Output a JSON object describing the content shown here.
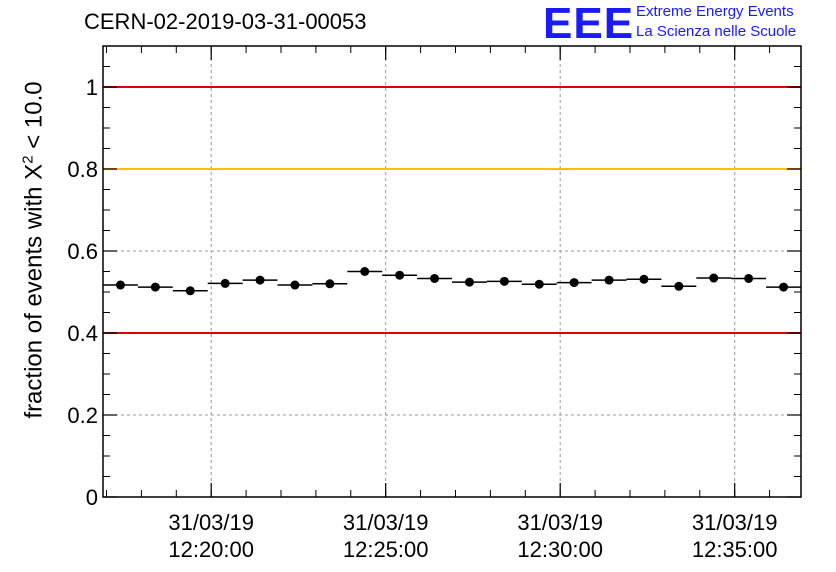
{
  "header": {
    "title": "CERN-02-2019-03-31-00053",
    "logo_text": "EEE",
    "logo_line1": "Extreme Energy Events",
    "logo_line2": "La Scienza nelle Scuole"
  },
  "colors": {
    "logo": "#1a1aff",
    "red_line": "#e00000",
    "yellow_line": "#ffc000",
    "points": "#000000"
  },
  "chart_data": {
    "type": "scatter",
    "title": "CERN-02-2019-03-31-00053",
    "xlabel": "",
    "ylabel_prefix": "fraction of events with X",
    "ylabel_sup": "2",
    "ylabel_suffix": " < 10.0",
    "ylim": [
      0,
      1.1
    ],
    "xlim_minutes": [
      0,
      20
    ],
    "yticks": [
      "0",
      "0.2",
      "0.4",
      "0.6",
      "0.8",
      "1"
    ],
    "ytick_values": [
      0,
      0.2,
      0.4,
      0.6,
      0.8,
      1.0
    ],
    "xticks": [
      {
        "minute": 3.1,
        "date": "31/03/19",
        "time": "12:20:00"
      },
      {
        "minute": 8.1,
        "date": "31/03/19",
        "time": "12:25:00"
      },
      {
        "minute": 13.1,
        "date": "31/03/19",
        "time": "12:30:00"
      },
      {
        "minute": 18.1,
        "date": "31/03/19",
        "time": "12:35:00"
      }
    ],
    "reference_lines": [
      {
        "y": 1.0,
        "color": "#e00000"
      },
      {
        "y": 0.8,
        "color": "#ffc000"
      },
      {
        "y": 0.4,
        "color": "#e00000"
      }
    ],
    "grid": true,
    "bin_width_minutes": 1,
    "series": [
      {
        "name": "fraction",
        "x": [
          0.5,
          1.5,
          2.5,
          3.5,
          4.5,
          5.5,
          6.5,
          7.5,
          8.5,
          9.5,
          10.5,
          11.5,
          12.5,
          13.5,
          14.5,
          15.5,
          16.5,
          17.5,
          18.5,
          19.5
        ],
        "y": [
          0.517,
          0.512,
          0.503,
          0.521,
          0.529,
          0.517,
          0.52,
          0.55,
          0.541,
          0.533,
          0.524,
          0.526,
          0.519,
          0.523,
          0.529,
          0.531,
          0.514,
          0.534,
          0.533,
          0.512
        ]
      }
    ]
  }
}
